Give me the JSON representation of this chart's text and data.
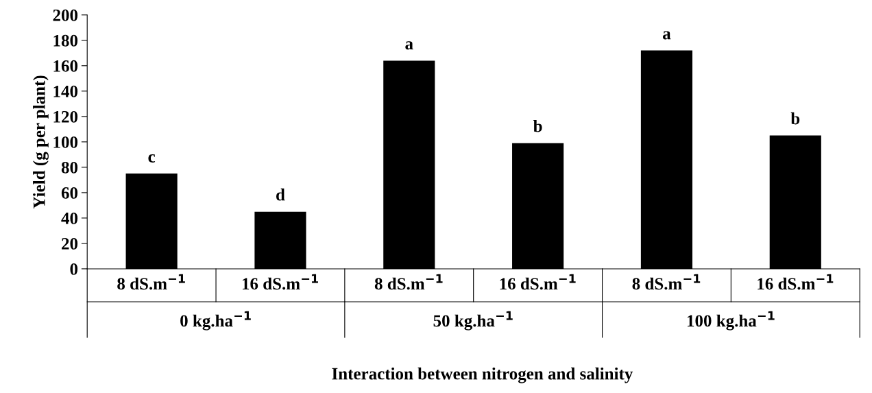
{
  "chart_data": {
    "type": "bar",
    "xlabel": "Interaction between nitrogen and salinity",
    "ylabel": "Yield (g per plant)",
    "categories": [
      "8 dS.m$^{−1}$",
      "16 dS.m$^{−1}$",
      "8 dS.m$^{−1}$",
      "16 dS.m$^{−1}$",
      "8 dS.m$^{−1}$",
      "16 dS.m$^{−1}$"
    ],
    "values": [
      75,
      45,
      164,
      99,
      172,
      105
    ],
    "value_labels": [
      "c",
      "d",
      "a",
      "b",
      "a",
      "b"
    ],
    "color": "#000000",
    "ylim": [
      0,
      200
    ],
    "yticks": [
      0,
      20,
      40,
      60,
      80,
      100,
      120,
      140,
      160,
      180,
      200
    ],
    "grid": false,
    "annotations": [
      "0 kg.ha$^{−1}$",
      "50 kg.ha$^{−1}$",
      "100 kg.ha$^{−1}$"
    ]
  }
}
